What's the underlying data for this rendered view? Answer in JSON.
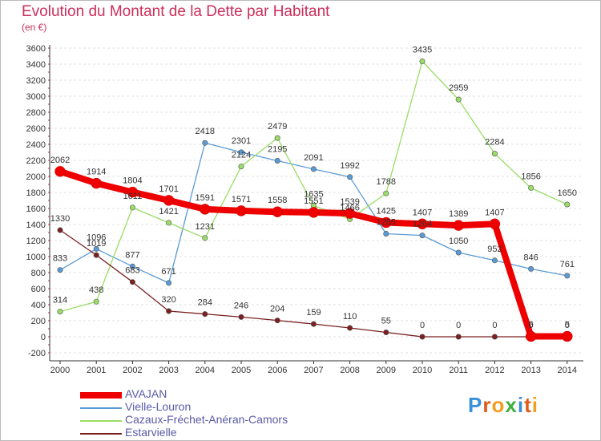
{
  "title": "Evolution du Montant de la Dette par Habitant",
  "subtitle": "(en €)",
  "logo": "Proxiti",
  "chart_data": {
    "type": "line",
    "title": "Evolution du Montant de la Dette par Habitant",
    "subtitle": "(en €)",
    "x": [
      2000,
      2001,
      2002,
      2003,
      2004,
      2005,
      2006,
      2007,
      2008,
      2009,
      2010,
      2011,
      2012,
      2013,
      2014
    ],
    "ylim": [
      -200,
      3600
    ],
    "yticks": [
      -200,
      0,
      200,
      400,
      600,
      800,
      1000,
      1200,
      1400,
      1600,
      1800,
      2000,
      2200,
      2400,
      2600,
      2800,
      3000,
      3200,
      3400,
      3600
    ],
    "legend_position": "bottom-left",
    "series": [
      {
        "name": "AVAJAN",
        "color": "#ee0000",
        "values": [
          2062,
          1914,
          1804,
          1701,
          1591,
          1571,
          1558,
          1551,
          1539,
          1425,
          1407,
          1389,
          1407,
          5,
          5
        ]
      },
      {
        "name": "Vielle-Louron",
        "color": "#5b9bd5",
        "values": [
          833,
          1096,
          877,
          671,
          2418,
          2301,
          2195,
          2091,
          1992,
          1285,
          1264,
          1050,
          952,
          846,
          761
        ]
      },
      {
        "name": "Cazaux-Fréchet-Anéran-Camors",
        "color": "#99dd66",
        "values": [
          314,
          438,
          1611,
          1421,
          1231,
          2124,
          2479,
          1635,
          1466,
          1788,
          3435,
          2959,
          2284,
          1856,
          1650
        ]
      },
      {
        "name": "Estarvielle",
        "color": "#7a2020",
        "values": [
          1330,
          1019,
          683,
          320,
          284,
          246,
          204,
          159,
          110,
          55,
          0,
          0,
          0,
          0,
          0
        ]
      }
    ]
  }
}
